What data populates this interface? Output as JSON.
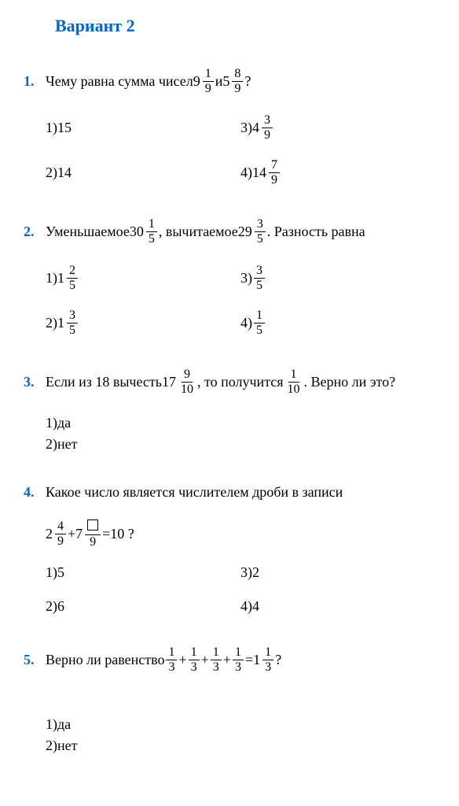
{
  "header": "Вариант 2",
  "accent_color": "#0066cc",
  "problems": [
    {
      "num": "1.",
      "text_parts": [
        "Чему равна сумма чисел ",
        {
          "whole": "9",
          "n": "1",
          "d": "9"
        },
        " и ",
        {
          "whole": "5",
          "n": "8",
          "d": "9"
        },
        " ?"
      ],
      "answers_grid": true,
      "answers": [
        {
          "label": "1) ",
          "parts": [
            "15"
          ]
        },
        {
          "label": "3) ",
          "parts": [
            {
              "whole": "4",
              "n": "3",
              "d": "9"
            }
          ]
        },
        {
          "label": "2) ",
          "parts": [
            "14"
          ]
        },
        {
          "label": "4) ",
          "parts": [
            {
              "whole": "14",
              "n": "7",
              "d": "9"
            }
          ]
        }
      ]
    },
    {
      "num": "2.",
      "text_parts": [
        "Уменьшаемое ",
        {
          "whole": "30",
          "n": "1",
          "d": "5"
        },
        " , вычитаемое ",
        {
          "whole": "29",
          "n": "3",
          "d": "5"
        },
        " . Разность равна"
      ],
      "answers_grid": true,
      "answers": [
        {
          "label": "1) ",
          "parts": [
            {
              "whole": "1",
              "n": "2",
              "d": "5"
            }
          ]
        },
        {
          "label": "3) ",
          "parts": [
            {
              "n": "3",
              "d": "5"
            }
          ]
        },
        {
          "label": "2) ",
          "parts": [
            {
              "whole": "1",
              "n": "3",
              "d": "5"
            }
          ]
        },
        {
          "label": "4) ",
          "parts": [
            {
              "n": "1",
              "d": "5"
            }
          ]
        }
      ]
    },
    {
      "num": "3.",
      "text_parts": [
        "Если из 18 вычесть ",
        {
          "whole": "17",
          "n": "9",
          "d": "10"
        },
        " , то получится ",
        {
          "n": "1",
          "d": "10"
        },
        " . Верно ли это?"
      ],
      "answers_grid": false,
      "answers": [
        {
          "label": "1) ",
          "parts": [
            "да"
          ]
        },
        {
          "label": "2) ",
          "parts": [
            "нет"
          ]
        }
      ]
    },
    {
      "num": "4.",
      "text_parts": [
        "Какое число является числителем дроби в записи"
      ],
      "equation": [
        {
          "whole": "2",
          "n": "4",
          "d": "9"
        },
        "+",
        {
          "whole": "7",
          "n": "□",
          "d": "9"
        },
        "=10 ?"
      ],
      "answers_grid": true,
      "answers": [
        {
          "label": "1) ",
          "parts": [
            "5"
          ]
        },
        {
          "label": "3) ",
          "parts": [
            "2"
          ]
        },
        {
          "label": "2) ",
          "parts": [
            "6"
          ]
        },
        {
          "label": "4) ",
          "parts": [
            "4"
          ]
        }
      ]
    },
    {
      "num": "5.",
      "text_parts": [
        "Верно ли равенство ",
        {
          "n": "1",
          "d": "3"
        },
        "+",
        {
          "n": "1",
          "d": "3"
        },
        "+",
        {
          "n": "1",
          "d": "3"
        },
        "+",
        {
          "n": "1",
          "d": "3"
        },
        "=",
        {
          "whole": "1",
          "n": "1",
          "d": "3"
        },
        " ?"
      ],
      "answers_grid": false,
      "pre_gap": true,
      "answers": [
        {
          "label": "1) ",
          "parts": [
            "да"
          ]
        },
        {
          "label": "2) ",
          "parts": [
            "нет"
          ]
        }
      ]
    }
  ]
}
